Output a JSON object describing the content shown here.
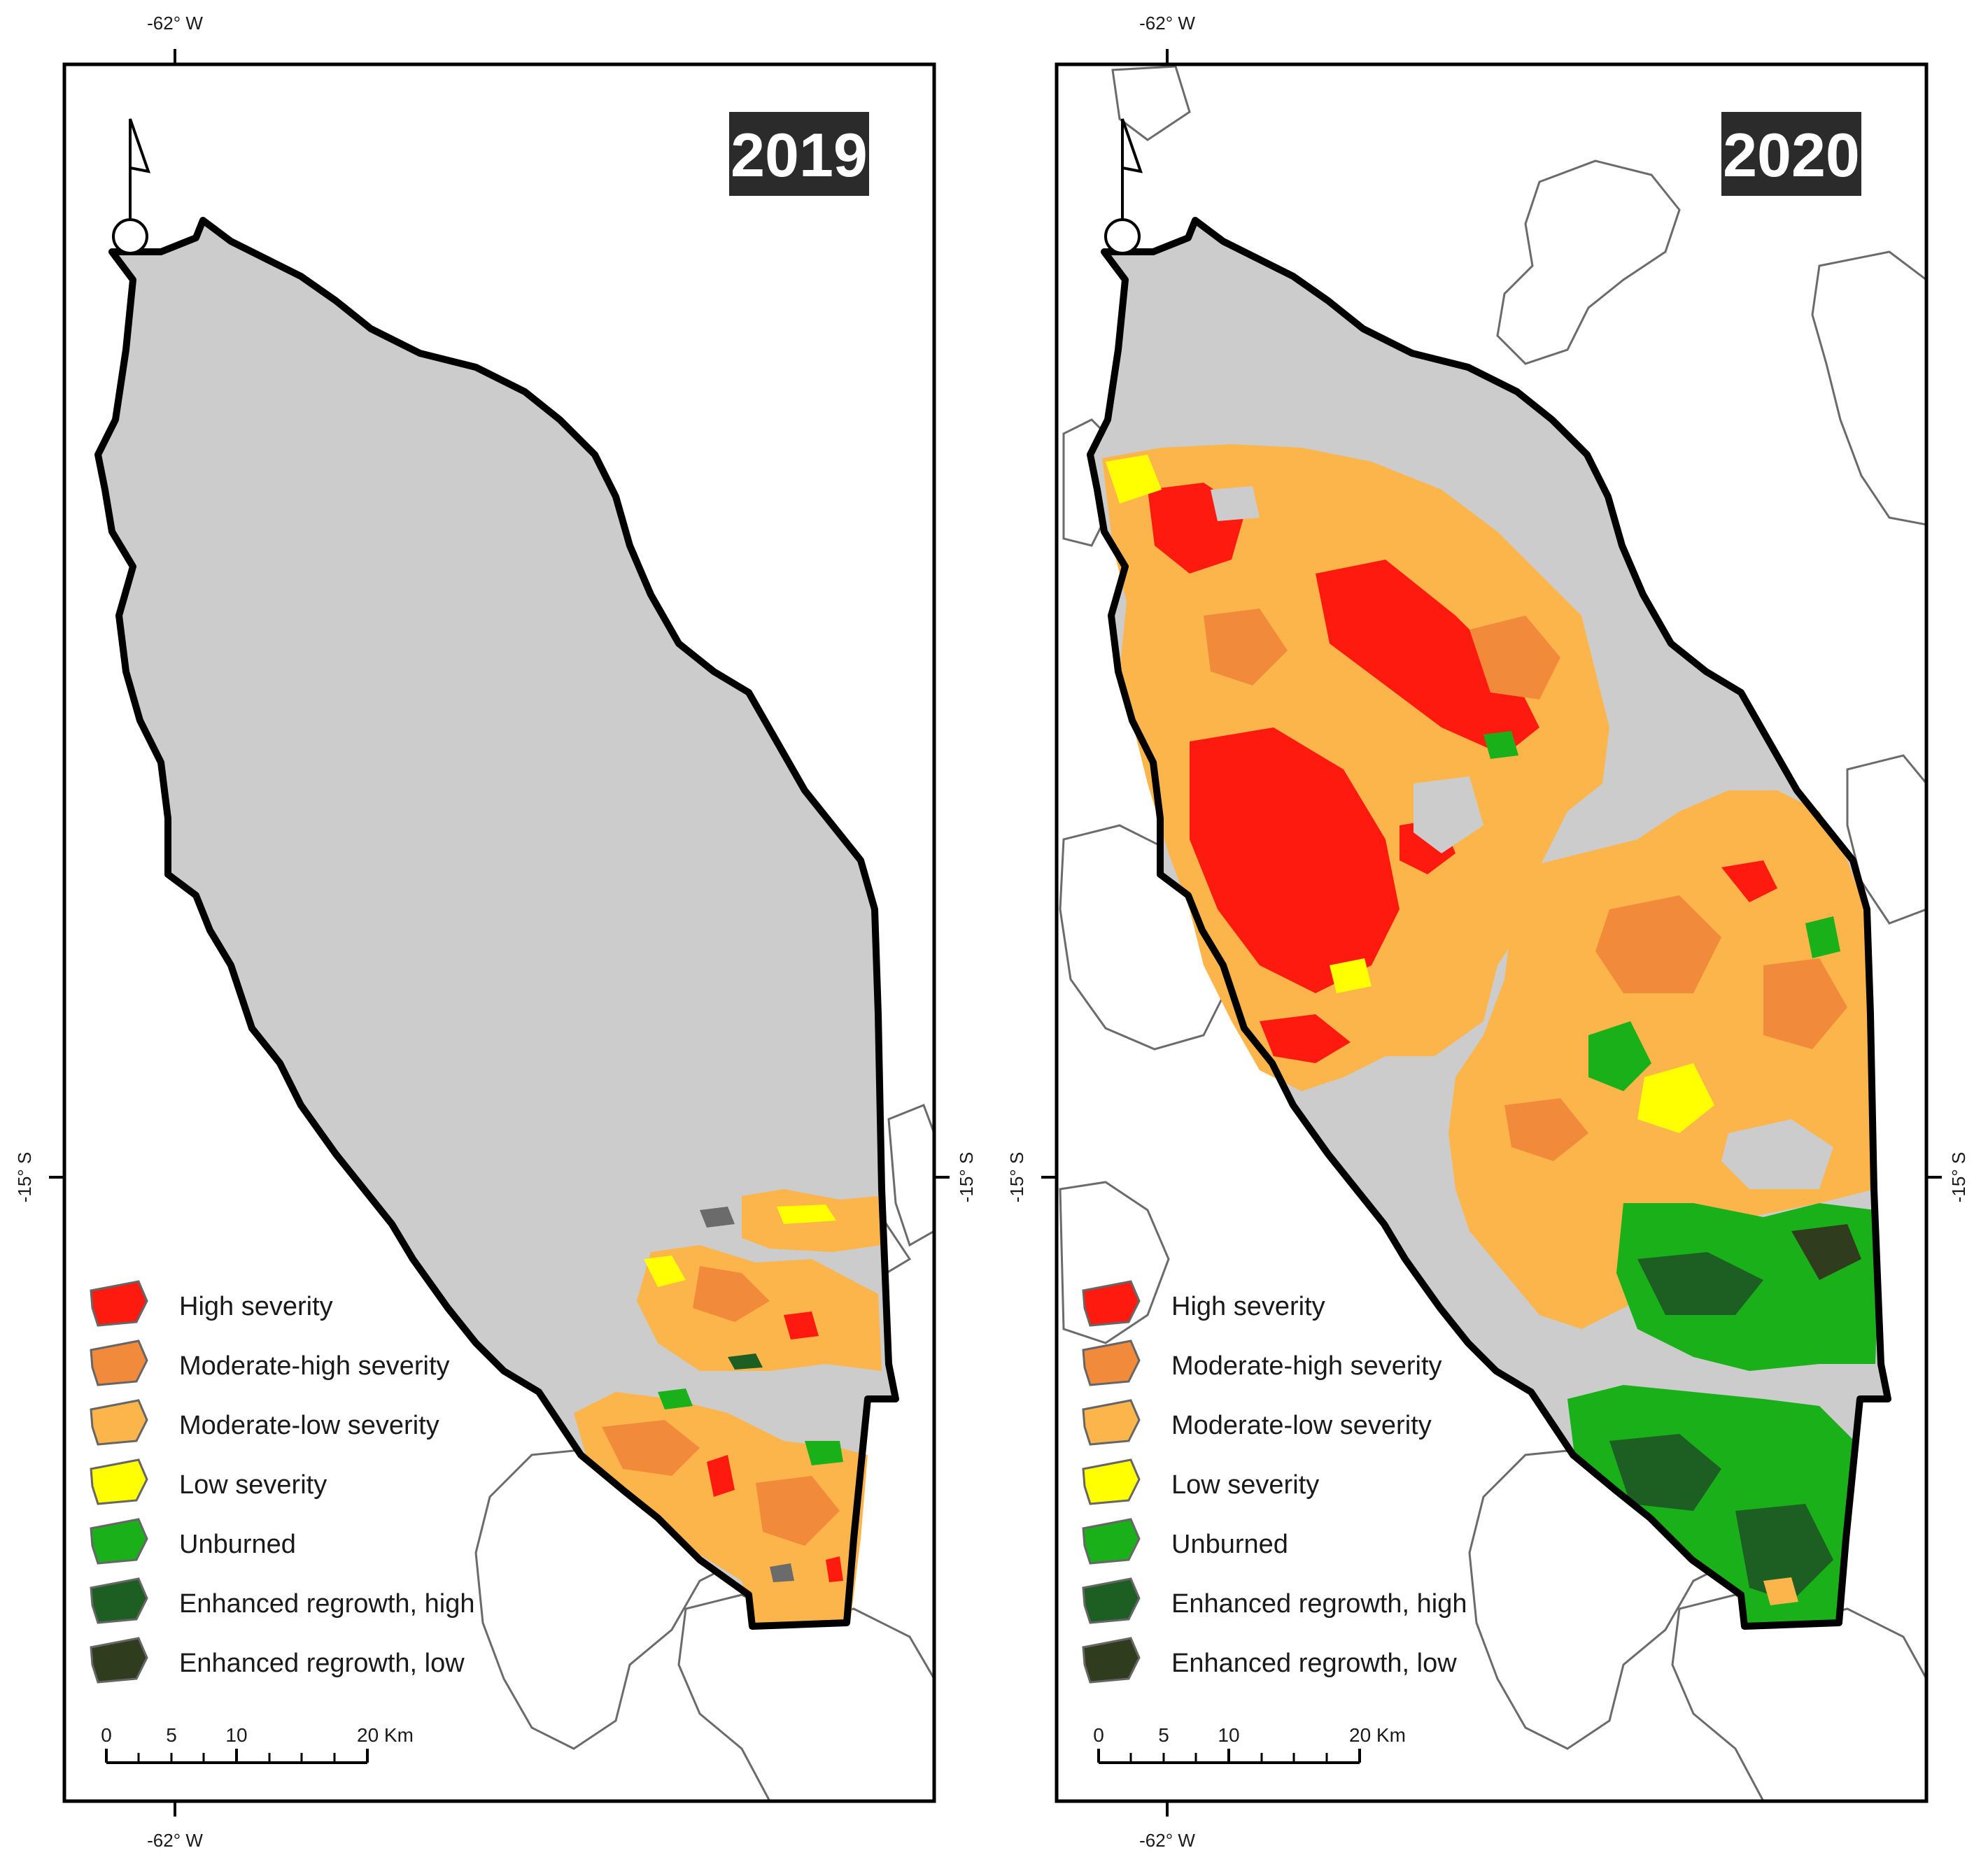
{
  "panels": [
    {
      "year": "2019",
      "coords": {
        "lon_top": "-62° W",
        "lon_bottom": "-62° W",
        "lat_left": "-15° S",
        "lat_right": "-15° S"
      },
      "scale": {
        "ticks": [
          "0",
          "5",
          "10",
          "20 Km"
        ]
      }
    },
    {
      "year": "2020",
      "coords": {
        "lon_top": "-62° W",
        "lon_bottom": "-62° W",
        "lat_left": "-15° S",
        "lat_right": "-15° S"
      },
      "scale": {
        "ticks": [
          "0",
          "5",
          "10",
          "20 Km"
        ]
      }
    }
  ],
  "legend": [
    {
      "label": "High severity",
      "color": "#ff1a0f"
    },
    {
      "label": "Moderate-high severity",
      "color": "#f28a3c"
    },
    {
      "label": "Moderate-low severity",
      "color": "#fbb54a"
    },
    {
      "label": "Low severity",
      "color": "#ffff00"
    },
    {
      "label": "Unburned",
      "color": "#19b019"
    },
    {
      "label": "Enhanced regrowth, high",
      "color": "#1d5e22"
    },
    {
      "label": "Enhanced regrowth, low",
      "color": "#2f3d1e"
    }
  ],
  "colors": {
    "park_fill": "#cccccc",
    "outside_outline": "#6b6b6b",
    "boundary": "#000000"
  },
  "icons": [
    "north-arrow-icon"
  ]
}
